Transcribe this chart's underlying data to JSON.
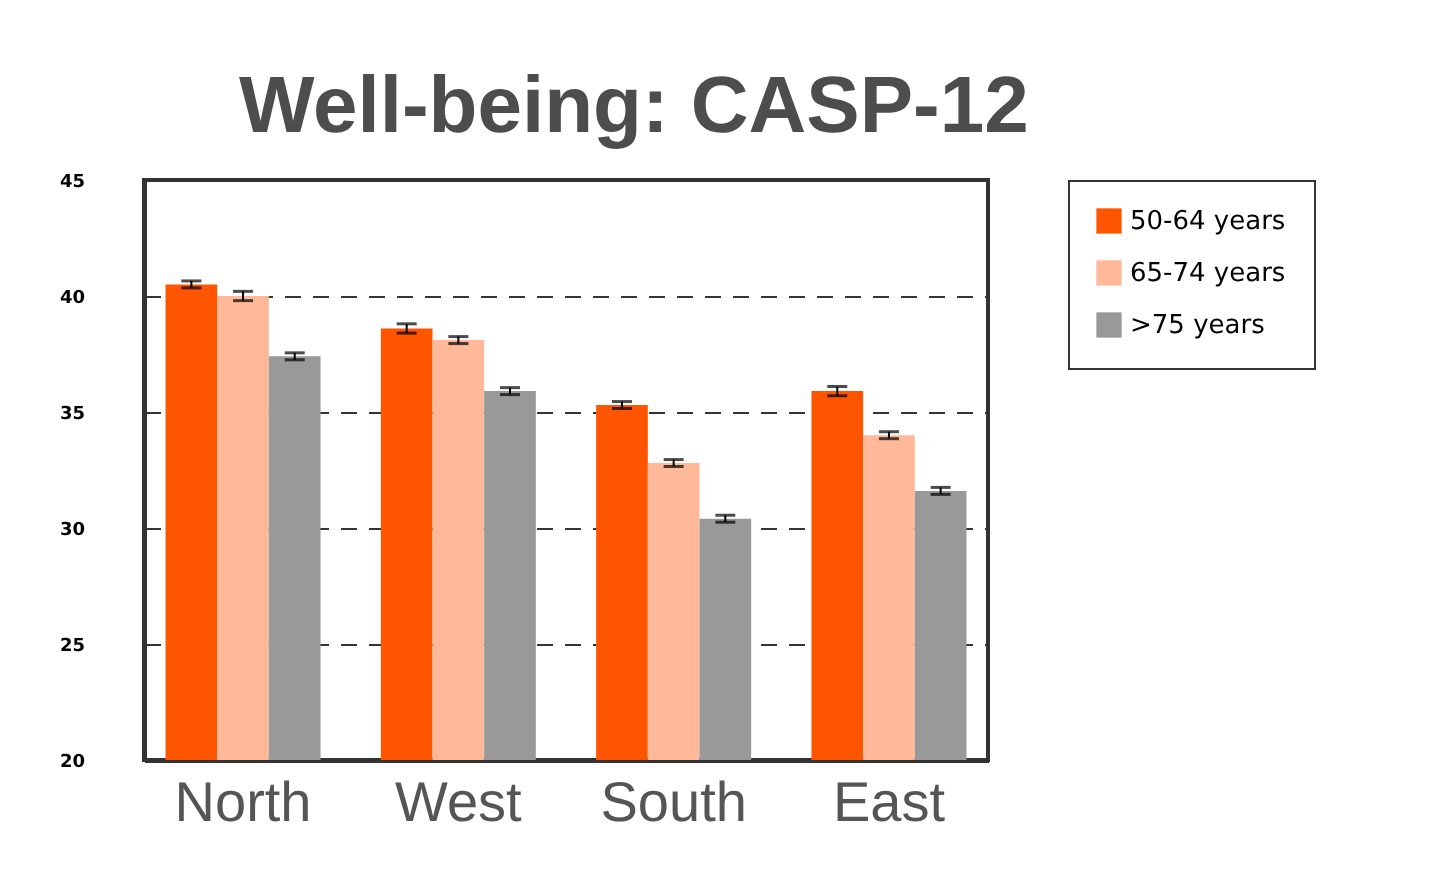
{
  "chart_data": {
    "type": "bar",
    "title": "Well-being: CASP-12",
    "categories": [
      "North",
      "West",
      "South",
      "East"
    ],
    "series": [
      {
        "name": "50-64 years",
        "color": "#ff5500",
        "values": [
          40.5,
          38.6,
          35.3,
          35.9
        ],
        "errors": [
          0.15,
          0.2,
          0.15,
          0.2
        ]
      },
      {
        "name": "65-74 years",
        "color": "#ffb898",
        "values": [
          40.0,
          38.1,
          32.8,
          34.0
        ],
        "errors": [
          0.2,
          0.15,
          0.15,
          0.15
        ]
      },
      {
        "name": ">75 years",
        "color": "#999999",
        "values": [
          37.4,
          35.9,
          30.4,
          31.6
        ],
        "errors": [
          0.15,
          0.15,
          0.15,
          0.15
        ]
      }
    ],
    "ylim": [
      20,
      45
    ],
    "yticks": [
      20,
      25,
      30,
      35,
      40,
      45
    ],
    "grid": "y",
    "legend": "right"
  }
}
